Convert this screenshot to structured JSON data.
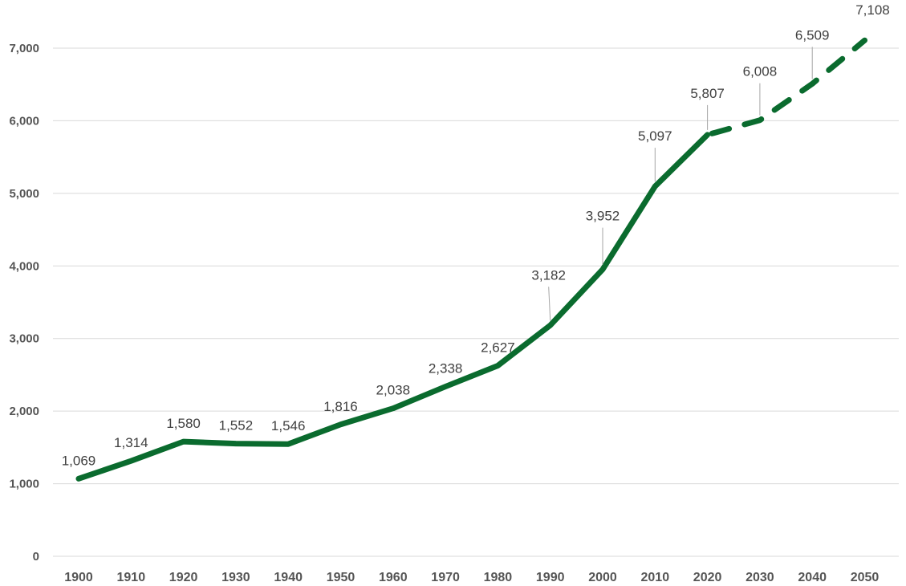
{
  "chart_data": {
    "type": "line",
    "title": "",
    "xlabel": "",
    "ylabel": "",
    "categories": [
      "1900",
      "1910",
      "1920",
      "1930",
      "1940",
      "1950",
      "1960",
      "1970",
      "1980",
      "1990",
      "2000",
      "2010",
      "2020",
      "2030",
      "2040",
      "2050"
    ],
    "series": [
      {
        "values": [
          1069,
          1314,
          1580,
          1552,
          1546,
          1816,
          2038,
          2338,
          2627,
          3182,
          3952,
          5097,
          5807,
          6008,
          6509,
          7108
        ],
        "labels": [
          "1,069",
          "1,314",
          "1,580",
          "1,552",
          "1,546",
          "1,816",
          "2,038",
          "2,338",
          "2,627",
          "3,182",
          "3,952",
          "5,097",
          "5,807",
          "6,008",
          "6,509",
          "7,108"
        ],
        "color": "#0a6b2e",
        "projected_from": "2020",
        "projected_style": "dashed"
      }
    ],
    "ylim": [
      0,
      7000
    ],
    "yticks": [
      0,
      1000,
      2000,
      3000,
      4000,
      5000,
      6000,
      7000
    ],
    "ytick_labels": [
      "0",
      "1,000",
      "2,000",
      "3,000",
      "4,000",
      "5,000",
      "6,000",
      "7,000"
    ],
    "grid": "horizontal",
    "legend": "none"
  }
}
